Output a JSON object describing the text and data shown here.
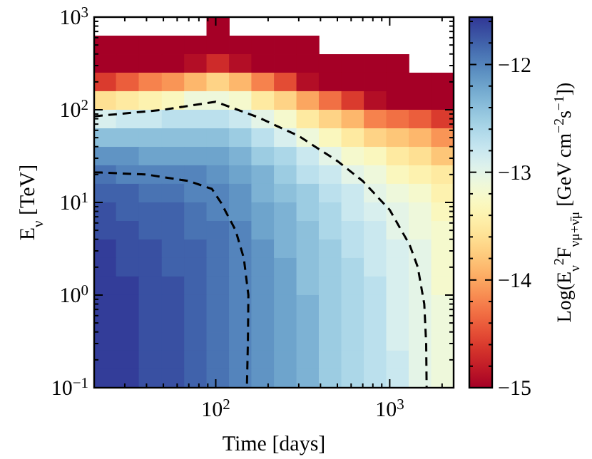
{
  "chart_data": {
    "type": "heatmap",
    "xlabel": "Time [days]",
    "ylabel": "E$_{ν}$ [TeV]",
    "clabel": "Log(E$_{ν}$$^{2}$F$_{νμ+ν̄μ}$ [GeV cm$^{−2}$s$^{−1}$])",
    "log": "xy",
    "xlim": [
      20,
      2330
    ],
    "ylim": [
      0.1,
      1000
    ],
    "xticks": [
      {
        "value": 20,
        "label": null
      },
      {
        "value": 30,
        "label": null
      },
      {
        "value": 40,
        "label": null
      },
      {
        "value": 50,
        "label": null
      },
      {
        "value": 60,
        "label": null
      },
      {
        "value": 70,
        "label": null
      },
      {
        "value": 80,
        "label": null
      },
      {
        "value": 90,
        "label": null
      },
      {
        "value": 100,
        "label": "10$^{2}$"
      },
      {
        "value": 200,
        "label": null
      },
      {
        "value": 300,
        "label": null
      },
      {
        "value": 400,
        "label": null
      },
      {
        "value": 500,
        "label": null
      },
      {
        "value": 600,
        "label": null
      },
      {
        "value": 700,
        "label": null
      },
      {
        "value": 800,
        "label": null
      },
      {
        "value": 900,
        "label": null
      },
      {
        "value": 1000,
        "label": "10$^{3}$"
      },
      {
        "value": 2000,
        "label": null
      }
    ],
    "yticks": [
      {
        "value": 0.1,
        "label": "10$^{−1}$"
      },
      {
        "value": 0.2,
        "label": null
      },
      {
        "value": 0.3,
        "label": null
      },
      {
        "value": 0.4,
        "label": null
      },
      {
        "value": 0.5,
        "label": null
      },
      {
        "value": 0.6,
        "label": null
      },
      {
        "value": 0.7,
        "label": null
      },
      {
        "value": 0.8,
        "label": null
      },
      {
        "value": 0.9,
        "label": null
      },
      {
        "value": 1,
        "label": "10$^{0}$"
      },
      {
        "value": 2,
        "label": null
      },
      {
        "value": 3,
        "label": null
      },
      {
        "value": 4,
        "label": null
      },
      {
        "value": 5,
        "label": null
      },
      {
        "value": 6,
        "label": null
      },
      {
        "value": 7,
        "label": null
      },
      {
        "value": 8,
        "label": null
      },
      {
        "value": 9,
        "label": null
      },
      {
        "value": 10,
        "label": "10$^{1}$"
      },
      {
        "value": 20,
        "label": null
      },
      {
        "value": 30,
        "label": null
      },
      {
        "value": 40,
        "label": null
      },
      {
        "value": 50,
        "label": null
      },
      {
        "value": 60,
        "label": null
      },
      {
        "value": 70,
        "label": null
      },
      {
        "value": 80,
        "label": null
      },
      {
        "value": 90,
        "label": null
      },
      {
        "value": 100,
        "label": "10$^{2}$"
      },
      {
        "value": 200,
        "label": null
      },
      {
        "value": 300,
        "label": null
      },
      {
        "value": 400,
        "label": null
      },
      {
        "value": 500,
        "label": null
      },
      {
        "value": 600,
        "label": null
      },
      {
        "value": 700,
        "label": null
      },
      {
        "value": 800,
        "label": null
      },
      {
        "value": 900,
        "label": null
      },
      {
        "value": 1000,
        "label": "10$^{3}$"
      }
    ],
    "clim": [
      -15,
      -11.56
    ],
    "cticks": [
      {
        "value": -15,
        "label": "−15"
      },
      {
        "value": -14.8,
        "label": null
      },
      {
        "value": -14.6,
        "label": null
      },
      {
        "value": -14.4,
        "label": null
      },
      {
        "value": -14.2,
        "label": null
      },
      {
        "value": -14,
        "label": "−14"
      },
      {
        "value": -13.8,
        "label": null
      },
      {
        "value": -13.6,
        "label": null
      },
      {
        "value": -13.4,
        "label": null
      },
      {
        "value": -13.2,
        "label": null
      },
      {
        "value": -13,
        "label": "−13"
      },
      {
        "value": -12.8,
        "label": null
      },
      {
        "value": -12.6,
        "label": null
      },
      {
        "value": -12.4,
        "label": null
      },
      {
        "value": -12.2,
        "label": null
      },
      {
        "value": -12,
        "label": "−12"
      },
      {
        "value": -11.8,
        "label": null
      },
      {
        "value": -11.6,
        "label": null
      }
    ],
    "x": [
      23,
      31,
      42,
      57,
      76,
      103,
      138,
      186,
      251,
      337,
      454,
      612,
      823,
      1108,
      1492,
      2009
    ],
    "y": [
      794,
      501,
      316,
      200,
      126,
      79.4,
      50.1,
      31.6,
      20,
      12.6,
      7.94,
      5.01,
      3.16,
      2.0,
      1.26,
      0.794,
      0.501,
      0.316,
      0.2,
      0.126
    ],
    "cells": [
      [
        null,
        null,
        null,
        null,
        null,
        -15,
        null,
        null,
        null,
        null,
        null,
        null,
        null,
        null,
        null,
        null
      ],
      [
        -15,
        -15,
        -15,
        -15,
        -15,
        -15,
        -15,
        -15,
        -15,
        -15,
        null,
        null,
        null,
        null,
        null,
        null
      ],
      [
        -15,
        -15,
        -15,
        -15,
        -14.9,
        -14.7,
        -14.9,
        -15,
        -15,
        -15,
        -15,
        -15,
        -15,
        -15,
        null,
        null
      ],
      [
        -14.6,
        -14.4,
        -14.2,
        -14.1,
        -13.9,
        -13.7,
        -13.9,
        -14.2,
        -14.5,
        -14.9,
        -15,
        -15,
        -15,
        -15,
        -15,
        -15
      ],
      [
        -13.6,
        -13.5,
        -13.4,
        -13.3,
        -13.1,
        -13.1,
        -13.2,
        -13.5,
        -13.7,
        -14.0,
        -14.3,
        -14.6,
        -14.9,
        -15,
        -15,
        -15
      ],
      [
        -12.9,
        -12.8,
        -12.8,
        -12.7,
        -12.7,
        -12.7,
        -12.8,
        -13.0,
        -13.2,
        -13.5,
        -13.7,
        -13.9,
        -14.2,
        -14.3,
        -14.4,
        -14.6
      ],
      [
        -12.4,
        -12.4,
        -12.4,
        -12.4,
        -12.4,
        -12.4,
        -12.5,
        -12.7,
        -12.9,
        -13.1,
        -13.3,
        -13.5,
        -13.7,
        -13.8,
        -13.9,
        -14.1
      ],
      [
        -12.1,
        -12.1,
        -12.2,
        -12.2,
        -12.2,
        -12.2,
        -12.3,
        -12.5,
        -12.6,
        -12.8,
        -13.0,
        -13.2,
        -13.3,
        -13.5,
        -13.6,
        -13.8
      ],
      [
        -11.9,
        -12.0,
        -12.0,
        -12.0,
        -12.0,
        -12.1,
        -12.2,
        -12.3,
        -12.5,
        -12.7,
        -12.8,
        -13.0,
        -13.1,
        -13.3,
        -13.4,
        -13.5
      ],
      [
        -11.8,
        -11.8,
        -11.9,
        -11.9,
        -12.0,
        -12.0,
        -12.1,
        -12.3,
        -12.4,
        -12.5,
        -12.7,
        -12.8,
        -13.0,
        -13.1,
        -13.2,
        -13.4
      ],
      [
        -11.7,
        -11.8,
        -11.8,
        -11.8,
        -11.9,
        -12.0,
        -12.1,
        -12.2,
        -12.3,
        -12.5,
        -12.6,
        -12.8,
        -12.9,
        -13.0,
        -13.1,
        -13.3
      ],
      [
        -11.7,
        -11.7,
        -11.8,
        -11.8,
        -11.9,
        -11.9,
        -12.0,
        -12.2,
        -12.3,
        -12.4,
        -12.6,
        -12.7,
        -12.8,
        -13.0,
        -13.1,
        -13.2
      ],
      [
        -11.6,
        -11.7,
        -11.7,
        -11.8,
        -11.8,
        -11.9,
        -12.0,
        -12.1,
        -12.3,
        -12.4,
        -12.5,
        -12.7,
        -12.8,
        -12.9,
        -13.0,
        -13.2
      ],
      [
        -11.6,
        -11.7,
        -11.7,
        -11.8,
        -11.8,
        -11.9,
        -12.0,
        -12.1,
        -12.2,
        -12.4,
        -12.5,
        -12.6,
        -12.8,
        -12.9,
        -13.0,
        -13.2
      ],
      [
        -11.6,
        -11.6,
        -11.7,
        -11.7,
        -11.8,
        -11.9,
        -12.0,
        -12.1,
        -12.2,
        -12.4,
        -12.5,
        -12.6,
        -12.7,
        -12.9,
        -13.0,
        -13.2
      ],
      [
        -11.6,
        -11.6,
        -11.7,
        -11.7,
        -11.8,
        -11.9,
        -12.0,
        -12.1,
        -12.2,
        -12.3,
        -12.5,
        -12.6,
        -12.7,
        -12.9,
        -13.0,
        -13.1
      ],
      [
        -11.6,
        -11.6,
        -11.7,
        -11.7,
        -11.8,
        -11.9,
        -12.0,
        -12.1,
        -12.2,
        -12.3,
        -12.5,
        -12.6,
        -12.7,
        -12.9,
        -13.0,
        -13.1
      ],
      [
        -11.6,
        -11.6,
        -11.7,
        -11.7,
        -11.8,
        -11.9,
        -12.0,
        -12.1,
        -12.2,
        -12.3,
        -12.5,
        -12.6,
        -12.7,
        -12.9,
        -13.0,
        -13.1
      ],
      [
        -11.6,
        -11.6,
        -11.7,
        -11.7,
        -11.8,
        -11.9,
        -12.0,
        -12.1,
        -12.2,
        -12.3,
        -12.5,
        -12.6,
        -12.7,
        -12.8,
        -13.0,
        -13.1
      ],
      [
        -11.6,
        -11.6,
        -11.7,
        -11.7,
        -11.8,
        -11.9,
        -12.0,
        -12.1,
        -12.2,
        -12.3,
        -12.5,
        -12.6,
        -12.7,
        -12.8,
        -13.0,
        -13.1
      ]
    ],
    "series": [
      {
        "type": "line",
        "color": "#000000",
        "line_style": "dashed",
        "x": [
          20,
          50,
          100,
          175,
          300,
          500,
          700,
          1000,
          1300,
          1450,
          1580,
          1620,
          1630
        ],
        "values": [
          85,
          100,
          122,
          83,
          52,
          28,
          17,
          8.3,
          3.5,
          2,
          0.8,
          0.3,
          0.1
        ]
      },
      {
        "type": "line",
        "color": "#000000",
        "line_style": "dashed",
        "x": [
          20,
          22,
          40,
          70,
          95,
          107,
          130,
          145,
          154,
          153,
          151
        ],
        "values": [
          21,
          21,
          20,
          17,
          14,
          10,
          5,
          2.5,
          1,
          0.3,
          0.1
        ]
      }
    ]
  }
}
